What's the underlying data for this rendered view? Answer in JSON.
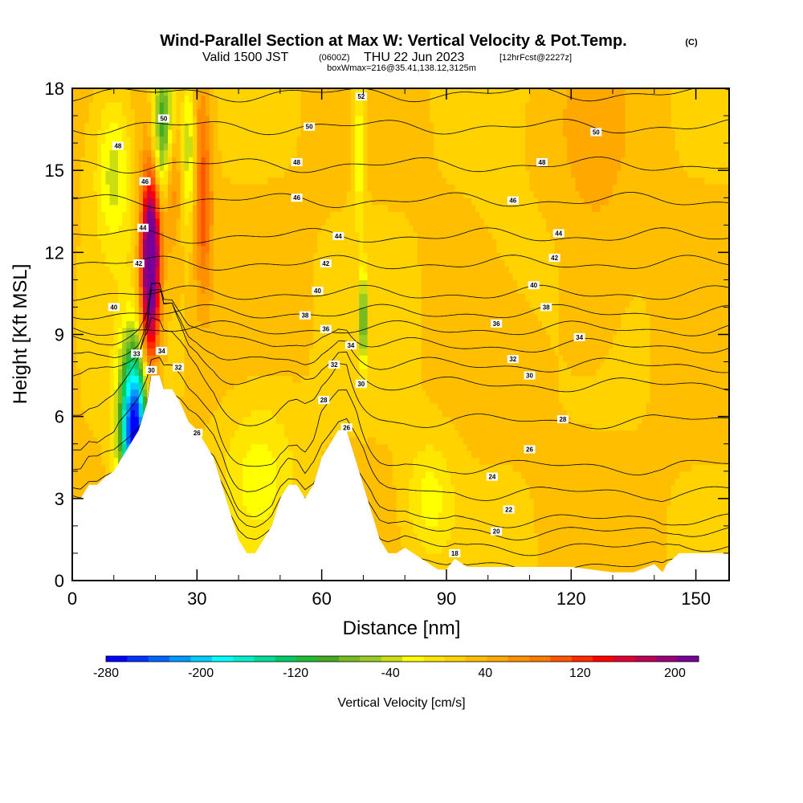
{
  "header": {
    "title": "Wind-Parallel Section at Max W: Vertical Velocity & Pot.Temp.",
    "title_mark": "(C)",
    "valid_prefix": "Valid 1500 JST",
    "valid_z": "(0600Z)",
    "valid_date": "THU 22 Jun 2023",
    "valid_fcst": "[12hrFcst@2227z]",
    "box_line": "boxWmax=216@35.41,138.12,3125m"
  },
  "chart_data": {
    "type": "heatmap",
    "xlabel": "Distance [nm]",
    "ylabel": "Height [Kft MSL]",
    "xlim": [
      0,
      158
    ],
    "ylim": [
      0,
      18
    ],
    "x_ticks": [
      0,
      30,
      60,
      90,
      120,
      150
    ],
    "y_ticks": [
      0,
      3,
      6,
      9,
      12,
      15,
      18
    ],
    "background_field": "Vertical Velocity",
    "contour_field": "Pot.Temp.",
    "terrain": [
      [
        0,
        3
      ],
      [
        2,
        3
      ],
      [
        4,
        3.5
      ],
      [
        6,
        3.5
      ],
      [
        8,
        3.8
      ],
      [
        10,
        4
      ],
      [
        12,
        4.5
      ],
      [
        14,
        5
      ],
      [
        16,
        5.5
      ],
      [
        18,
        6.5
      ],
      [
        19,
        7.5
      ],
      [
        20,
        7.5
      ],
      [
        21,
        7.5
      ],
      [
        22,
        7.0
      ],
      [
        24,
        7.0
      ],
      [
        26,
        6.5
      ],
      [
        28,
        5.8
      ],
      [
        30,
        5.5
      ],
      [
        32,
        5.0
      ],
      [
        34,
        4.5
      ],
      [
        36,
        3.5
      ],
      [
        38,
        2.5
      ],
      [
        40,
        1.5
      ],
      [
        42,
        1.0
      ],
      [
        44,
        1.0
      ],
      [
        46,
        1.5
      ],
      [
        48,
        2.0
      ],
      [
        50,
        3.0
      ],
      [
        52,
        3.5
      ],
      [
        54,
        3.5
      ],
      [
        56,
        3.0
      ],
      [
        58,
        3.5
      ],
      [
        60,
        4.5
      ],
      [
        62,
        5.0
      ],
      [
        64,
        5.5
      ],
      [
        66,
        5.5
      ],
      [
        68,
        4.5
      ],
      [
        70,
        3.5
      ],
      [
        72,
        2.5
      ],
      [
        74,
        1.5
      ],
      [
        76,
        1.0
      ],
      [
        78,
        1.0
      ],
      [
        80,
        1.2
      ],
      [
        82,
        1.0
      ],
      [
        84,
        0.8
      ],
      [
        86,
        0.6
      ],
      [
        88,
        0.4
      ],
      [
        90,
        0.4
      ],
      [
        92,
        0.8
      ],
      [
        95,
        0.5
      ],
      [
        100,
        0.5
      ],
      [
        110,
        0.5
      ],
      [
        120,
        0.5
      ],
      [
        130,
        0.3
      ],
      [
        135,
        0.3
      ],
      [
        140,
        0.6
      ],
      [
        142,
        0.3
      ],
      [
        143,
        0.6
      ],
      [
        146,
        1.0
      ],
      [
        150,
        1.0
      ],
      [
        155,
        1.0
      ],
      [
        158,
        1.0
      ]
    ],
    "colorbar": {
      "label": "Vertical Velocity [cm/s]",
      "range": [
        -280,
        220
      ],
      "tick_labels": [
        "-280",
        "-200",
        "-120",
        "-40",
        "40",
        "120",
        "200"
      ],
      "colors": [
        "#0000ff",
        "#0033ff",
        "#0066ff",
        "#0099ff",
        "#00ccff",
        "#00ffff",
        "#00eecc",
        "#00dd99",
        "#00cc66",
        "#22bb33",
        "#44aa22",
        "#77bb22",
        "#99cc22",
        "#ccdd11",
        "#ffff00",
        "#ffe600",
        "#ffd200",
        "#ffbf00",
        "#ffa800",
        "#ff9100",
        "#ff7a00",
        "#ff5500",
        "#ff2a00",
        "#ff0000",
        "#dd0033",
        "#bb0055",
        "#990077",
        "#770099"
      ]
    },
    "w_features": [
      {
        "x": 15,
        "z": 5.5,
        "w": -280,
        "sx": 2.5,
        "sz": 2.2
      },
      {
        "x": 18.5,
        "z": 10.5,
        "w": 210,
        "sx": 1.6,
        "sz": 2.5
      },
      {
        "x": 19.5,
        "z": 13,
        "w": 150,
        "sx": 1.6,
        "sz": 2.0
      },
      {
        "x": 21,
        "z": 16,
        "w": -80,
        "sx": 1.5,
        "sz": 2.0
      },
      {
        "x": 23,
        "z": 17,
        "w": -60,
        "sx": 1.5,
        "sz": 1.5
      },
      {
        "x": 24,
        "z": 15,
        "w": 80,
        "sx": 1.5,
        "sz": 2.0
      },
      {
        "x": 28,
        "z": 16,
        "w": -50,
        "sx": 1.2,
        "sz": 2.0
      },
      {
        "x": 31.5,
        "z": 14,
        "w": 110,
        "sx": 1.5,
        "sz": 2.5
      },
      {
        "x": 30,
        "z": 17.5,
        "w": 40,
        "sx": 2.0,
        "sz": 1.0
      },
      {
        "x": 10,
        "z": 15,
        "w": -40,
        "sx": 3.0,
        "sz": 2.0
      },
      {
        "x": 70,
        "z": 9.5,
        "w": -100,
        "sx": 0.6,
        "sz": 1.2
      },
      {
        "x": 69,
        "z": 16,
        "w": -35,
        "sx": 1.0,
        "sz": 2.0
      },
      {
        "x": 125,
        "z": 15,
        "w": 45,
        "sx": 8.0,
        "sz": 3.5
      },
      {
        "x": 125,
        "z": 10,
        "w": 35,
        "sx": 5.0,
        "sz": 2.0
      },
      {
        "x": 110,
        "z": 12,
        "w": 15,
        "sx": 10.0,
        "sz": 2.0
      },
      {
        "x": 45,
        "z": 4,
        "w": -20,
        "sx": 6.0,
        "sz": 2.0
      },
      {
        "x": 86,
        "z": 3,
        "w": -20,
        "sx": 4.0,
        "sz": 1.5
      }
    ],
    "theta_contours": [
      {
        "v": 16,
        "b": 1.0
      },
      {
        "v": 18,
        "b": 1.6
      },
      {
        "v": 20,
        "b": 2.1
      },
      {
        "v": 22,
        "b": 2.5
      },
      {
        "v": 24,
        "b": 3.4
      },
      {
        "v": 26,
        "b": 4.3
      },
      {
        "v": 28,
        "b": 5.9
      },
      {
        "v": 30,
        "b": 7.2
      },
      {
        "v": 32,
        "b": 7.9
      },
      {
        "v": 34,
        "b": 8.6
      },
      {
        "v": 36,
        "b": 9.2
      },
      {
        "v": 38,
        "b": 9.8
      },
      {
        "v": 40,
        "b": 10.5
      },
      {
        "v": 42,
        "b": 11.6
      },
      {
        "v": 44,
        "b": 12.6
      },
      {
        "v": 46,
        "b": 13.9
      },
      {
        "v": 48,
        "b": 15.2
      },
      {
        "v": 50,
        "b": 16.6
      },
      {
        "v": 52,
        "b": 17.8
      }
    ],
    "theta_labels": [
      {
        "t": "52",
        "x": 69.5,
        "z": 17.7
      },
      {
        "t": "50",
        "x": 22,
        "z": 16.9
      },
      {
        "t": "50",
        "x": 57,
        "z": 16.6
      },
      {
        "t": "50",
        "x": 126,
        "z": 16.4
      },
      {
        "t": "48",
        "x": 11,
        "z": 15.9
      },
      {
        "t": "48",
        "x": 54,
        "z": 15.3
      },
      {
        "t": "48",
        "x": 113,
        "z": 15.3
      },
      {
        "t": "46",
        "x": 17.5,
        "z": 14.6
      },
      {
        "t": "46",
        "x": 54,
        "z": 14.0
      },
      {
        "t": "46",
        "x": 106,
        "z": 13.9
      },
      {
        "t": "44",
        "x": 17,
        "z": 12.9
      },
      {
        "t": "44",
        "x": 64,
        "z": 12.6
      },
      {
        "t": "44",
        "x": 117,
        "z": 12.7
      },
      {
        "t": "42",
        "x": 16,
        "z": 11.6
      },
      {
        "t": "42",
        "x": 61,
        "z": 11.6
      },
      {
        "t": "42",
        "x": 116,
        "z": 11.8
      },
      {
        "t": "40",
        "x": 10,
        "z": 10.0
      },
      {
        "t": "40",
        "x": 59,
        "z": 10.6
      },
      {
        "t": "40",
        "x": 111,
        "z": 10.8
      },
      {
        "t": "38",
        "x": 56,
        "z": 9.7
      },
      {
        "t": "38",
        "x": 114,
        "z": 10.0
      },
      {
        "t": "36",
        "x": 61,
        "z": 9.2
      },
      {
        "t": "36",
        "x": 102,
        "z": 9.4
      },
      {
        "t": "34",
        "x": 21.5,
        "z": 8.4
      },
      {
        "t": "34",
        "x": 67,
        "z": 8.6
      },
      {
        "t": "34",
        "x": 122,
        "z": 8.9
      },
      {
        "t": "33",
        "x": 15.5,
        "z": 8.3
      },
      {
        "t": "32",
        "x": 25.5,
        "z": 7.8
      },
      {
        "t": "32",
        "x": 63,
        "z": 7.9
      },
      {
        "t": "32",
        "x": 106,
        "z": 8.1
      },
      {
        "t": "30",
        "x": 19,
        "z": 7.7
      },
      {
        "t": "30",
        "x": 69.5,
        "z": 7.2
      },
      {
        "t": "30",
        "x": 110,
        "z": 7.5
      },
      {
        "t": "28",
        "x": 60.5,
        "z": 6.6
      },
      {
        "t": "28",
        "x": 118,
        "z": 5.9
      },
      {
        "t": "26",
        "x": 30,
        "z": 5.4
      },
      {
        "t": "26",
        "x": 66,
        "z": 5.6
      },
      {
        "t": "26",
        "x": 110,
        "z": 4.8
      },
      {
        "t": "24",
        "x": 101,
        "z": 3.8
      },
      {
        "t": "22",
        "x": 105,
        "z": 2.6
      },
      {
        "t": "20",
        "x": 102,
        "z": 1.8
      },
      {
        "t": "18",
        "x": 92,
        "z": 1.0
      }
    ]
  }
}
